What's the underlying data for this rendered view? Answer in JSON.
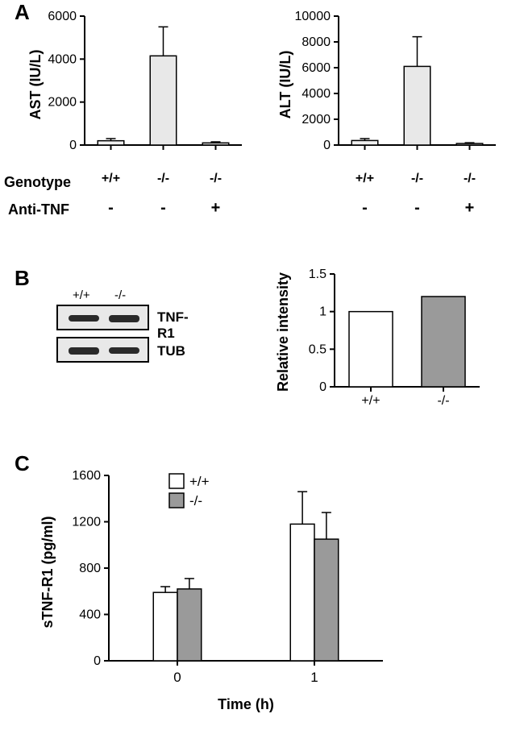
{
  "panelA": {
    "label": "A",
    "ast": {
      "type": "bar",
      "ylabel": "AST (IU/L)",
      "ylim": [
        0,
        6000
      ],
      "yticks": [
        0,
        2000,
        4000,
        6000
      ],
      "categories": [
        "+/+",
        "-/-",
        "-/-"
      ],
      "antiTNF": [
        "-",
        "-",
        "+"
      ],
      "values": [
        200,
        4150,
        100
      ],
      "errors": [
        100,
        1350,
        50
      ],
      "bar_colors": [
        "#f0f0f0",
        "#e8e8e8",
        "#e8e8e8"
      ],
      "bar_stroke": "#000000",
      "background_color": "#ffffff",
      "axis_color": "#000000",
      "tick_fontsize": 16,
      "label_fontsize": 18,
      "bar_width": 0.5
    },
    "alt": {
      "type": "bar",
      "ylabel": "ALT (IU/L)",
      "ylim": [
        0,
        10000
      ],
      "yticks": [
        0,
        2000,
        4000,
        6000,
        8000,
        10000
      ],
      "categories": [
        "+/+",
        "-/-",
        "-/-"
      ],
      "antiTNF": [
        "-",
        "-",
        "+"
      ],
      "values": [
        350,
        6100,
        120
      ],
      "errors": [
        150,
        2300,
        60
      ],
      "bar_colors": [
        "#f0f0f0",
        "#e8e8e8",
        "#e8e8e8"
      ],
      "bar_stroke": "#000000",
      "background_color": "#ffffff",
      "axis_color": "#000000",
      "tick_fontsize": 16,
      "label_fontsize": 18,
      "bar_width": 0.5
    },
    "rowLabels": {
      "genotype": "Genotype",
      "antiTNF": "Anti-TNF"
    }
  },
  "panelB": {
    "label": "B",
    "blot": {
      "lanes": [
        "+/+",
        "-/-"
      ],
      "rows": [
        "TNF-R1",
        "TUB"
      ],
      "border_color": "#000000",
      "band_color": "#2a2a2a",
      "bg_color": "#e8e8e8"
    },
    "chart": {
      "type": "bar",
      "ylabel": "Relative intensity",
      "ylim": [
        0,
        1.5
      ],
      "yticks": [
        0,
        0.5,
        1,
        1.5
      ],
      "categories": [
        "+/+",
        "-/-"
      ],
      "values": [
        1.0,
        1.2
      ],
      "bar_colors": [
        "#ffffff",
        "#9a9a9a"
      ],
      "bar_stroke": "#000000",
      "axis_color": "#000000",
      "tick_fontsize": 16,
      "label_fontsize": 18,
      "bar_width": 0.6
    }
  },
  "panelC": {
    "label": "C",
    "chart": {
      "type": "bar",
      "ylabel": "sTNF-R1 (pg/ml)",
      "xlabel": "Time (h)",
      "ylim": [
        0,
        1600
      ],
      "yticks": [
        0,
        400,
        800,
        1200,
        1600
      ],
      "xcategories": [
        "0",
        "1"
      ],
      "groups": [
        {
          "name": "+/+",
          "color": "#ffffff",
          "values": [
            590,
            1180
          ],
          "errors": [
            50,
            280
          ]
        },
        {
          "name": "-/-",
          "color": "#9a9a9a",
          "values": [
            620,
            1050
          ],
          "errors": [
            90,
            230
          ]
        }
      ],
      "bar_stroke": "#000000",
      "axis_color": "#000000",
      "tick_fontsize": 16,
      "label_fontsize": 18,
      "bar_width": 0.35,
      "legend": {
        "position": "top-inside",
        "items": [
          {
            "label": "+/+",
            "color": "#ffffff"
          },
          {
            "label": "-/-",
            "color": "#9a9a9a"
          }
        ]
      }
    }
  }
}
